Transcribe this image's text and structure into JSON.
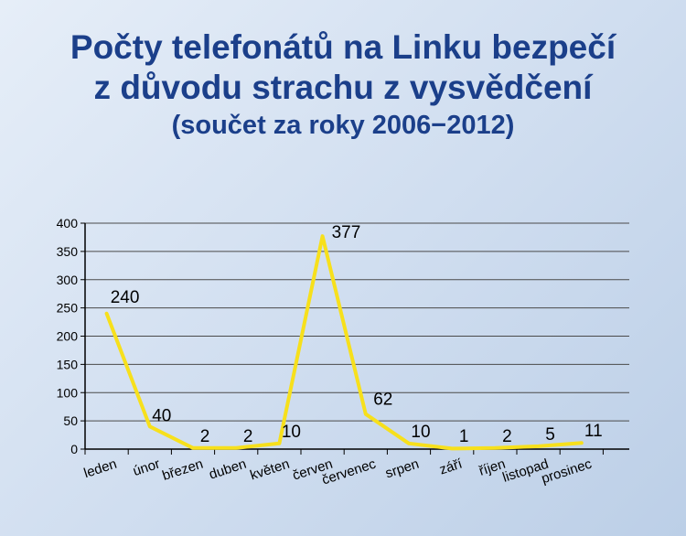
{
  "chart_data": {
    "type": "line",
    "title_line1": "Počty telefonátů na Linku bezpečí",
    "title_line2": "z důvodu strachu z vysvědčení",
    "subtitle": "(součet za roky 2006−2012)",
    "categories": [
      "leden",
      "únor",
      "březen",
      "duben",
      "květen",
      "červen",
      "červenec",
      "srpen",
      "září",
      "říjen",
      "listopad",
      "prosinec"
    ],
    "values": [
      240,
      40,
      2,
      2,
      10,
      377,
      62,
      10,
      1,
      2,
      5,
      11
    ],
    "data_labels": [
      "240",
      "40",
      "2",
      "2",
      "10",
      "377",
      "62",
      "10",
      "1",
      "2",
      "5",
      "11"
    ],
    "yticks": [
      "0",
      "50",
      "100",
      "150",
      "200",
      "250",
      "300",
      "350",
      "400"
    ],
    "ylim": [
      0,
      400
    ],
    "grid": true,
    "legend": "none",
    "line_color": "#f7e01c"
  }
}
